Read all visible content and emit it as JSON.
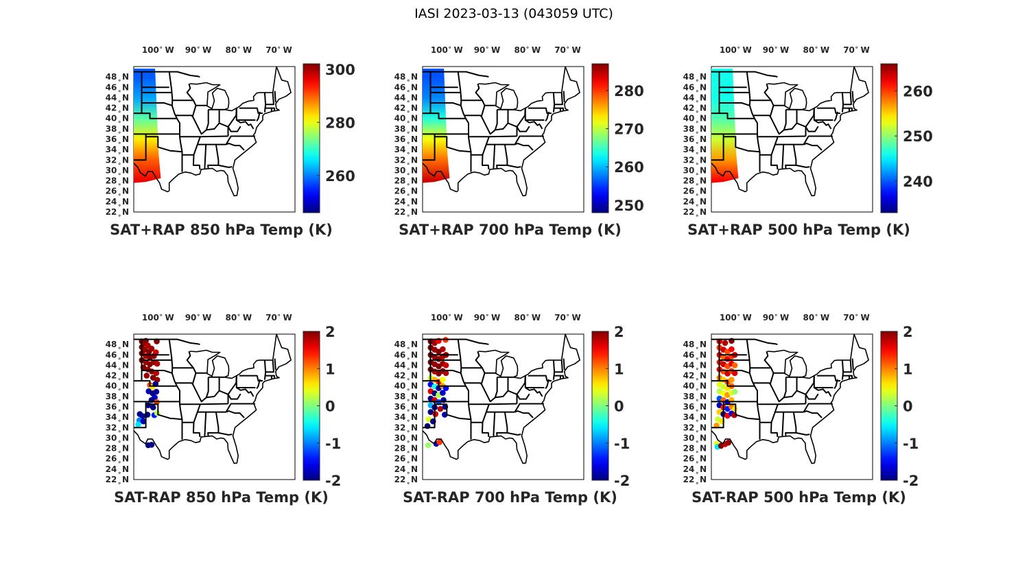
{
  "figure": {
    "title": "IASI 2023-03-13 (043059 UTC)"
  },
  "axes": {
    "lon_ticks": [
      "100",
      "90",
      "80",
      "70"
    ],
    "lon_suffix": "W",
    "lat_ticks": [
      "48",
      "46",
      "44",
      "42",
      "40",
      "38",
      "36",
      "34",
      "32",
      "30",
      "28",
      "26",
      "24",
      "22"
    ],
    "lat_suffix": "N",
    "degree_mark": "∘"
  },
  "colormap": "jet",
  "chart_data": [
    {
      "type": "heatmap",
      "title": "SAT+RAP 850 hPa Temp (K)",
      "colorbar": {
        "ticks": [
          260,
          280,
          300
        ],
        "range": [
          246,
          302
        ]
      },
      "swath_gradient": [
        {
          "lat": 48,
          "value": 258
        },
        {
          "lat": 44,
          "value": 262
        },
        {
          "lat": 40,
          "value": 272
        },
        {
          "lat": 36,
          "value": 282
        },
        {
          "lat": 32,
          "value": 290
        },
        {
          "lat": 28,
          "value": 296
        }
      ]
    },
    {
      "type": "heatmap",
      "title": "SAT+RAP 700 hPa Temp (K)",
      "colorbar": {
        "ticks": [
          250,
          260,
          270,
          280
        ],
        "range": [
          248,
          287
        ]
      },
      "swath_gradient": [
        {
          "lat": 48,
          "value": 256
        },
        {
          "lat": 44,
          "value": 258
        },
        {
          "lat": 40,
          "value": 264
        },
        {
          "lat": 36,
          "value": 272
        },
        {
          "lat": 32,
          "value": 278
        },
        {
          "lat": 28,
          "value": 284
        }
      ]
    },
    {
      "type": "heatmap",
      "title": "SAT+RAP 500 hPa Temp (K)",
      "colorbar": {
        "ticks": [
          240,
          250,
          260
        ],
        "range": [
          233,
          266
        ]
      },
      "swath_gradient": [
        {
          "lat": 48,
          "value": 246
        },
        {
          "lat": 44,
          "value": 246
        },
        {
          "lat": 40,
          "value": 248
        },
        {
          "lat": 36,
          "value": 252
        },
        {
          "lat": 32,
          "value": 257
        },
        {
          "lat": 28,
          "value": 262
        }
      ]
    },
    {
      "type": "scatter",
      "title": "SAT-RAP 850 hPa Temp (K)",
      "colorbar": {
        "ticks": [
          2,
          1,
          0,
          -1,
          -2
        ],
        "range": [
          -2,
          2
        ]
      },
      "points": [
        {
          "lon": -104,
          "lat": 48.6,
          "value": 2
        },
        {
          "lon": -103.5,
          "lat": 48.2,
          "value": 1.9
        },
        {
          "lon": -103,
          "lat": 48.7,
          "value": 2
        },
        {
          "lon": -102.5,
          "lat": 47.8,
          "value": 1.8
        },
        {
          "lon": -104,
          "lat": 47.5,
          "value": 2
        },
        {
          "lon": -103.2,
          "lat": 47,
          "value": 1.9
        },
        {
          "lon": -102.2,
          "lat": 46.6,
          "value": 2
        },
        {
          "lon": -101.6,
          "lat": 47.2,
          "value": 1.9
        },
        {
          "lon": -104,
          "lat": 46.3,
          "value": 2
        },
        {
          "lon": -103,
          "lat": 45.8,
          "value": 1.8
        },
        {
          "lon": -102,
          "lat": 45.5,
          "value": 2
        },
        {
          "lon": -101,
          "lat": 45.8,
          "value": 1.9
        },
        {
          "lon": -100.5,
          "lat": 46.5,
          "value": 1.7
        },
        {
          "lon": -100.3,
          "lat": 48.6,
          "value": 2
        },
        {
          "lon": -104,
          "lat": 45,
          "value": 2
        },
        {
          "lon": -103,
          "lat": 44.6,
          "value": 1.9
        },
        {
          "lon": -102,
          "lat": 44.2,
          "value": 2
        },
        {
          "lon": -101,
          "lat": 44.6,
          "value": 1.9
        },
        {
          "lon": -100.2,
          "lat": 44.3,
          "value": 1.8
        },
        {
          "lon": -103.6,
          "lat": 43.6,
          "value": 2
        },
        {
          "lon": -102.5,
          "lat": 43.2,
          "value": 1.9
        },
        {
          "lon": -101.5,
          "lat": 42.8,
          "value": 2
        },
        {
          "lon": -100.4,
          "lat": 42.5,
          "value": 1.8
        },
        {
          "lon": -102.8,
          "lat": 42,
          "value": 1.9
        },
        {
          "lon": -101.2,
          "lat": 41.6,
          "value": 2
        },
        {
          "lon": -100.2,
          "lat": 41.2,
          "value": 1.9
        },
        {
          "lon": -102,
          "lat": 40.2,
          "value": 1.2
        },
        {
          "lon": -101.4,
          "lat": 39.8,
          "value": 0.6
        },
        {
          "lon": -100.6,
          "lat": 40.4,
          "value": -2
        },
        {
          "lon": -102.3,
          "lat": 39,
          "value": -1.8
        },
        {
          "lon": -101.3,
          "lat": 38.6,
          "value": -2
        },
        {
          "lon": -100.4,
          "lat": 38.9,
          "value": -1.9
        },
        {
          "lon": -100.8,
          "lat": 37.8,
          "value": -1.7
        },
        {
          "lon": -101.6,
          "lat": 37.3,
          "value": -2
        },
        {
          "lon": -100.3,
          "lat": 36.9,
          "value": 1.2
        },
        {
          "lon": -102.4,
          "lat": 36.3,
          "value": -1.9
        },
        {
          "lon": -101.2,
          "lat": 35.9,
          "value": -2
        },
        {
          "lon": -104.5,
          "lat": 34.6,
          "value": -2
        },
        {
          "lon": -103.8,
          "lat": 34.2,
          "value": -1.9
        },
        {
          "lon": -102.6,
          "lat": 34.5,
          "value": -2
        },
        {
          "lon": -100.9,
          "lat": 34.4,
          "value": -1.4
        },
        {
          "lon": -100.2,
          "lat": 34.8,
          "value": 0.2
        },
        {
          "lon": -104.6,
          "lat": 33.4,
          "value": -1
        },
        {
          "lon": -103.6,
          "lat": 33.2,
          "value": -1.8
        },
        {
          "lon": -104.9,
          "lat": 32.6,
          "value": -0.6
        },
        {
          "lon": -102.4,
          "lat": 28.6,
          "value": -2
        },
        {
          "lon": -101.6,
          "lat": 28.7,
          "value": -2
        }
      ]
    },
    {
      "type": "scatter",
      "title": "SAT-RAP 700 hPa Temp (K)",
      "colorbar": {
        "ticks": [
          2,
          1,
          0,
          -1,
          -2
        ],
        "range": [
          -2,
          2
        ]
      },
      "points": [
        {
          "lon": -104,
          "lat": 48.6,
          "value": 2
        },
        {
          "lon": -103,
          "lat": 48.3,
          "value": 1.9
        },
        {
          "lon": -102,
          "lat": 48.7,
          "value": 1.5
        },
        {
          "lon": -100.3,
          "lat": 48.9,
          "value": 1.3
        },
        {
          "lon": -104,
          "lat": 47.4,
          "value": 2
        },
        {
          "lon": -103,
          "lat": 47,
          "value": 1.9
        },
        {
          "lon": -102,
          "lat": 46.6,
          "value": 2
        },
        {
          "lon": -101,
          "lat": 47.1,
          "value": 1.8
        },
        {
          "lon": -104,
          "lat": 46,
          "value": 2
        },
        {
          "lon": -103,
          "lat": 45.6,
          "value": 1.9
        },
        {
          "lon": -102,
          "lat": 45.2,
          "value": 2
        },
        {
          "lon": -101,
          "lat": 45.7,
          "value": 1.8
        },
        {
          "lon": -100.2,
          "lat": 46,
          "value": 1.9
        },
        {
          "lon": -104,
          "lat": 44.6,
          "value": 2
        },
        {
          "lon": -103,
          "lat": 44.2,
          "value": 1.9
        },
        {
          "lon": -102,
          "lat": 43.8,
          "value": 2
        },
        {
          "lon": -101,
          "lat": 44.3,
          "value": 1.9
        },
        {
          "lon": -100.2,
          "lat": 44,
          "value": 1.7
        },
        {
          "lon": -104,
          "lat": 43.2,
          "value": 2
        },
        {
          "lon": -103,
          "lat": 42.8,
          "value": 1.8
        },
        {
          "lon": -102,
          "lat": 42.4,
          "value": 2
        },
        {
          "lon": -101,
          "lat": 42.9,
          "value": 1.9
        },
        {
          "lon": -100.2,
          "lat": 42.5,
          "value": 1.8
        },
        {
          "lon": -104,
          "lat": 41.6,
          "value": 0.3
        },
        {
          "lon": -103,
          "lat": 41.2,
          "value": 0.8
        },
        {
          "lon": -102,
          "lat": 40.8,
          "value": 1.4
        },
        {
          "lon": -101,
          "lat": 41.2,
          "value": 0.5
        },
        {
          "lon": -104,
          "lat": 40.3,
          "value": -1.6
        },
        {
          "lon": -103,
          "lat": 39.9,
          "value": -0.4
        },
        {
          "lon": -102,
          "lat": 39.6,
          "value": -1.9
        },
        {
          "lon": -101,
          "lat": 40,
          "value": 0.9
        },
        {
          "lon": -100.2,
          "lat": 39.6,
          "value": -1.5
        },
        {
          "lon": -104,
          "lat": 39,
          "value": 1.6
        },
        {
          "lon": -103,
          "lat": 38.6,
          "value": -2
        },
        {
          "lon": -102,
          "lat": 38.3,
          "value": 0.2
        },
        {
          "lon": -101,
          "lat": 38.7,
          "value": -1.7
        },
        {
          "lon": -104,
          "lat": 37.6,
          "value": -2
        },
        {
          "lon": -103,
          "lat": 37.3,
          "value": 1.7
        },
        {
          "lon": -102,
          "lat": 36.9,
          "value": -1.2
        },
        {
          "lon": -100.8,
          "lat": 37.3,
          "value": -1.9
        },
        {
          "lon": -104,
          "lat": 36.3,
          "value": -0.8
        },
        {
          "lon": -103,
          "lat": 35.9,
          "value": -2
        },
        {
          "lon": -101.6,
          "lat": 35.6,
          "value": 1.8
        },
        {
          "lon": -100.4,
          "lat": 36,
          "value": -1.9
        },
        {
          "lon": -104,
          "lat": 35,
          "value": -2
        },
        {
          "lon": -102.8,
          "lat": 34.6,
          "value": 1.6
        },
        {
          "lon": -100.5,
          "lat": 34.5,
          "value": -1.8
        },
        {
          "lon": -104.5,
          "lat": 33.6,
          "value": 0.4
        },
        {
          "lon": -103.4,
          "lat": 33.2,
          "value": -1.9
        },
        {
          "lon": -104.8,
          "lat": 32.3,
          "value": -2
        },
        {
          "lon": -104.6,
          "lat": 28.6,
          "value": 0.1
        },
        {
          "lon": -102.6,
          "lat": 28.9,
          "value": -1.8
        },
        {
          "lon": -101.8,
          "lat": 29.2,
          "value": 1.3
        }
      ]
    },
    {
      "type": "scatter",
      "title": "SAT-RAP 500 hPa Temp (K)",
      "colorbar": {
        "ticks": [
          2,
          1,
          0,
          -1,
          -2
        ],
        "range": [
          -2,
          2
        ]
      },
      "points": [
        {
          "lon": -104,
          "lat": 48.6,
          "value": 1.6
        },
        {
          "lon": -102.6,
          "lat": 48.3,
          "value": 1.8
        },
        {
          "lon": -101,
          "lat": 48.7,
          "value": 2
        },
        {
          "lon": -104,
          "lat": 47.4,
          "value": 1.3
        },
        {
          "lon": -103,
          "lat": 47,
          "value": 1.7
        },
        {
          "lon": -102,
          "lat": 46.6,
          "value": 1.2
        },
        {
          "lon": -101,
          "lat": 47.1,
          "value": 1.5
        },
        {
          "lon": -104,
          "lat": 46,
          "value": 1.5
        },
        {
          "lon": -103,
          "lat": 45.6,
          "value": 1.1
        },
        {
          "lon": -102,
          "lat": 45.2,
          "value": 1.6
        },
        {
          "lon": -101,
          "lat": 45.7,
          "value": 1.3
        },
        {
          "lon": -100.2,
          "lat": 46,
          "value": 1.7
        },
        {
          "lon": -104,
          "lat": 44.6,
          "value": 1.4
        },
        {
          "lon": -103,
          "lat": 44.2,
          "value": 1.7
        },
        {
          "lon": -102,
          "lat": 43.8,
          "value": 1.2
        },
        {
          "lon": -101,
          "lat": 44.3,
          "value": 1.6
        },
        {
          "lon": -100.2,
          "lat": 44,
          "value": 1.1
        },
        {
          "lon": -104,
          "lat": 43.2,
          "value": 1.5
        },
        {
          "lon": -103,
          "lat": 42.8,
          "value": 1.2
        },
        {
          "lon": -102,
          "lat": 42.4,
          "value": 1.7
        },
        {
          "lon": -101,
          "lat": 42.9,
          "value": 1.3
        },
        {
          "lon": -100.2,
          "lat": 42.5,
          "value": 1.6
        },
        {
          "lon": -104,
          "lat": 41.6,
          "value": 1
        },
        {
          "lon": -103,
          "lat": 41.2,
          "value": 0.7
        },
        {
          "lon": -102,
          "lat": 40.8,
          "value": 1.2
        },
        {
          "lon": -101,
          "lat": 41.2,
          "value": 0.9
        },
        {
          "lon": -104,
          "lat": 40.3,
          "value": 0.4
        },
        {
          "lon": -103,
          "lat": 39.9,
          "value": 0.3
        },
        {
          "lon": -102,
          "lat": 39.6,
          "value": 0.6
        },
        {
          "lon": -101,
          "lat": 40,
          "value": 1.1
        },
        {
          "lon": -104,
          "lat": 39,
          "value": 0.2
        },
        {
          "lon": -103,
          "lat": 38.6,
          "value": 0.5
        },
        {
          "lon": -102,
          "lat": 38.3,
          "value": 0.9
        },
        {
          "lon": -101,
          "lat": 38.7,
          "value": 0.4
        },
        {
          "lon": -100.2,
          "lat": 38.9,
          "value": 0.1
        },
        {
          "lon": -104,
          "lat": 37.6,
          "value": -1.2
        },
        {
          "lon": -103,
          "lat": 37.3,
          "value": 1.1
        },
        {
          "lon": -102,
          "lat": 36.9,
          "value": -1.5
        },
        {
          "lon": -101,
          "lat": 37.3,
          "value": 0.8
        },
        {
          "lon": -104,
          "lat": 36.3,
          "value": -1.8
        },
        {
          "lon": -103,
          "lat": 35.9,
          "value": 1.4
        },
        {
          "lon": -102,
          "lat": 35.6,
          "value": -1.4
        },
        {
          "lon": -101,
          "lat": 36,
          "value": 1
        },
        {
          "lon": -100.2,
          "lat": 35.6,
          "value": 0.6
        },
        {
          "lon": -104,
          "lat": 35,
          "value": 0.7
        },
        {
          "lon": -103,
          "lat": 34.6,
          "value": -1.9
        },
        {
          "lon": -102,
          "lat": 34.3,
          "value": 1.5
        },
        {
          "lon": -101,
          "lat": 34.7,
          "value": -1.6
        },
        {
          "lon": -100.3,
          "lat": 34.4,
          "value": 1.8
        },
        {
          "lon": -104.4,
          "lat": 33.6,
          "value": 0.3
        },
        {
          "lon": -103.4,
          "lat": 33.2,
          "value": 0.6
        },
        {
          "lon": -104.7,
          "lat": 32.4,
          "value": 0.9
        },
        {
          "lon": -104.7,
          "lat": 28.9,
          "value": 0.4
        },
        {
          "lon": -104.5,
          "lat": 28.3,
          "value": -0.6
        },
        {
          "lon": -103.6,
          "lat": 28.5,
          "value": 2
        },
        {
          "lon": -102.6,
          "lat": 28.8,
          "value": 1.7
        },
        {
          "lon": -101.8,
          "lat": 29.1,
          "value": 1.9
        }
      ]
    }
  ]
}
